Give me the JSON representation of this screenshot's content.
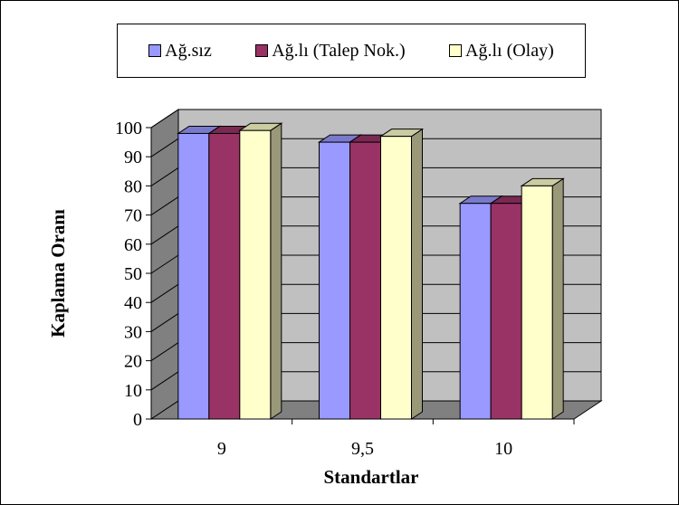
{
  "chart_data": {
    "type": "bar",
    "categories": [
      "9",
      "9,5",
      "10"
    ],
    "series": [
      {
        "name": "Ağ.sız",
        "values": [
          98,
          95,
          74
        ],
        "color": "#9999ff"
      },
      {
        "name": "Ağ.lı (Talep Nok.)",
        "values": [
          98,
          95,
          74
        ],
        "color": "#993366"
      },
      {
        "name": "Ağ.lı (Olay)",
        "values": [
          99,
          97,
          80
        ],
        "color": "#ffffcc"
      }
    ],
    "xlabel": "Standartlar",
    "ylabel": "Kaplama Oranı",
    "ylim": [
      0,
      100
    ],
    "yticks": [
      0,
      10,
      20,
      30,
      40,
      50,
      60,
      70,
      80,
      90,
      100
    ],
    "grid": true,
    "legend_position": "top",
    "three_d": true,
    "wall_color": "#c0c0c0"
  }
}
